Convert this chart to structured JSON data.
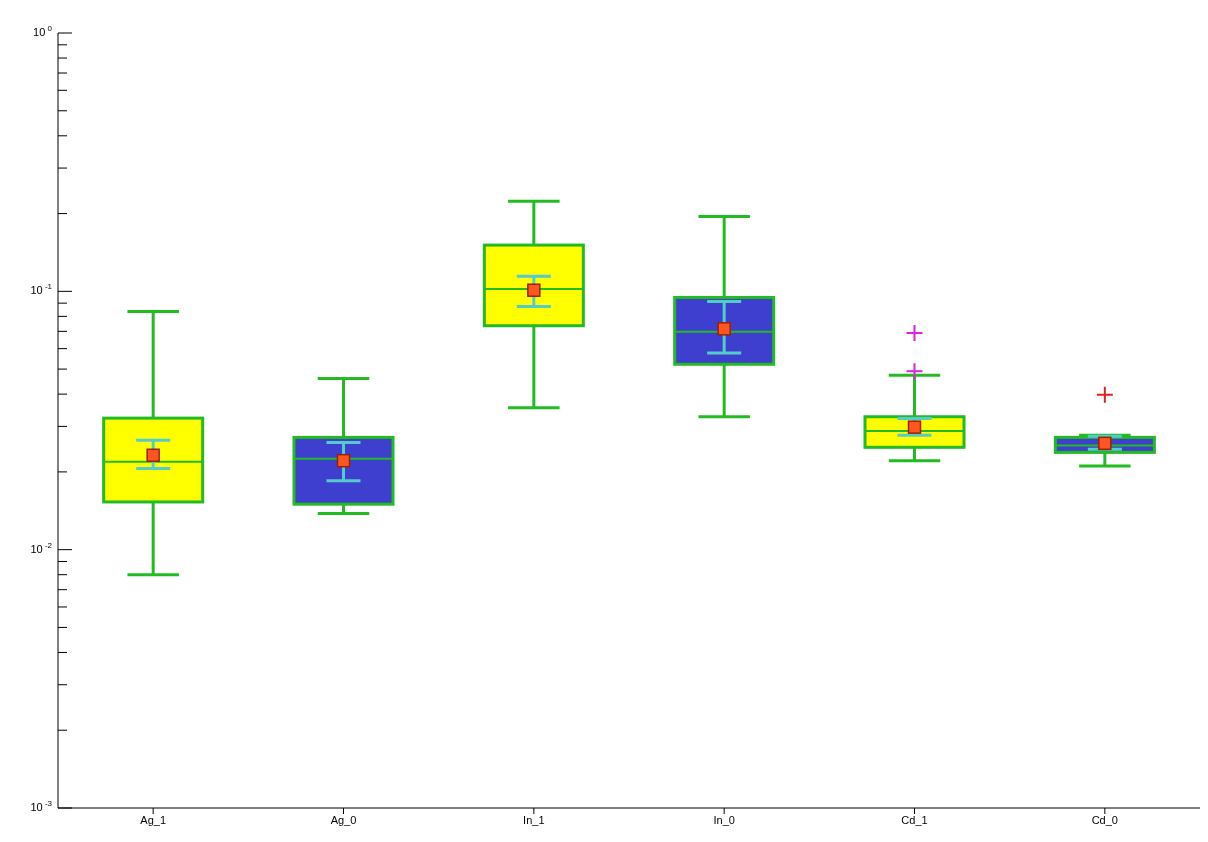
{
  "chart_data": {
    "type": "box",
    "categories": [
      "Ag_1",
      "Ag_0",
      "In_1",
      "In_0",
      "Cd_1",
      "Cd_0"
    ],
    "log": true,
    "ylim": [
      0.001,
      1
    ],
    "yticks": [
      {
        "value": 0.001,
        "label": "10$^{-3}$"
      },
      {
        "value": 0.002,
        "label": null
      },
      {
        "value": 0.003,
        "label": null
      },
      {
        "value": 0.004,
        "label": null
      },
      {
        "value": 0.005,
        "label": null
      },
      {
        "value": 0.006,
        "label": null
      },
      {
        "value": 0.007,
        "label": null
      },
      {
        "value": 0.008,
        "label": null
      },
      {
        "value": 0.009,
        "label": null
      },
      {
        "value": 0.01,
        "label": "10$^{-2}$"
      },
      {
        "value": 0.02,
        "label": null
      },
      {
        "value": 0.03,
        "label": null
      },
      {
        "value": 0.04,
        "label": null
      },
      {
        "value": 0.05,
        "label": null
      },
      {
        "value": 0.06,
        "label": null
      },
      {
        "value": 0.07,
        "label": null
      },
      {
        "value": 0.08,
        "label": null
      },
      {
        "value": 0.09,
        "label": null
      },
      {
        "value": 0.1,
        "label": "10$^{-1}$"
      },
      {
        "value": 0.2,
        "label": null
      },
      {
        "value": 0.3,
        "label": null
      },
      {
        "value": 0.4,
        "label": null
      },
      {
        "value": 0.5,
        "label": null
      },
      {
        "value": 0.6,
        "label": null
      },
      {
        "value": 0.7,
        "label": null
      },
      {
        "value": 0.8,
        "label": null
      },
      {
        "value": 0.9,
        "label": null
      },
      {
        "value": 1,
        "label": "10$^{0}$"
      }
    ],
    "grid": false,
    "series": [
      {
        "type": "box",
        "color": "#22bb22",
        "colors": [
          "#ffff00",
          "#3f3fcf",
          "#ffff00",
          "#3f3fcf",
          "#ffff00",
          "#3f3fcf"
        ],
        "boxes": [
          {
            "low": 0.008,
            "q1": 0.0153,
            "median": 0.0219,
            "q3": 0.0323,
            "high": 0.0835
          },
          {
            "low": 0.0138,
            "q1": 0.015,
            "median": 0.0225,
            "q3": 0.0272,
            "high": 0.046
          },
          {
            "low": 0.0354,
            "q1": 0.0736,
            "median": 0.102,
            "q3": 0.151,
            "high": 0.223
          },
          {
            "low": 0.0327,
            "q1": 0.0522,
            "median": 0.0697,
            "q3": 0.0947,
            "high": 0.195
          },
          {
            "low": 0.0221,
            "q1": 0.0249,
            "median": 0.0288,
            "q3": 0.0327,
            "high": 0.0473
          },
          {
            "low": 0.0211,
            "q1": 0.0238,
            "median": 0.0253,
            "q3": 0.0272,
            "high": 0.0277
          }
        ]
      },
      {
        "type": "scatter",
        "marker": "square",
        "color": "#ff5522",
        "x": [
          "Ag_1",
          "Ag_0",
          "In_1",
          "In_0",
          "Cd_1",
          "Cd_0"
        ],
        "values": [
          0.0232,
          0.0221,
          0.101,
          0.0716,
          0.0298,
          0.0258
        ],
        "errors": [
          [
            0.0206,
            0.0265
          ],
          [
            0.0185,
            0.026
          ],
          [
            0.0873,
            0.1145
          ],
          [
            0.0577,
            0.0914
          ],
          [
            0.0277,
            0.0322
          ],
          [
            0.0245,
            0.0275
          ]
        ]
      },
      {
        "type": "scatter",
        "marker": "cross",
        "x": [
          "Cd_1",
          "Cd_1",
          "Cd_0"
        ],
        "values": [
          0.069,
          0.049,
          0.0398
        ],
        "colors": [
          "#dd22dd",
          "#dd22dd",
          "#dd2222"
        ]
      }
    ]
  }
}
